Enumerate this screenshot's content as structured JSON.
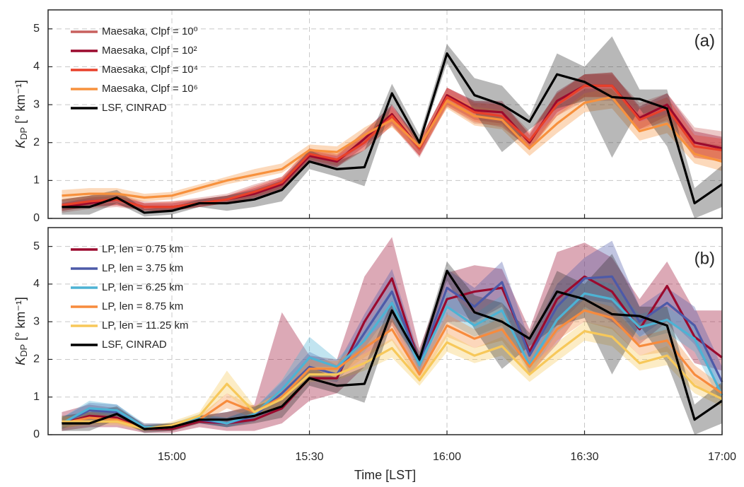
{
  "chart_data": [
    {
      "type": "line",
      "panel_label": "(a)",
      "legend": "upper left",
      "grid": true,
      "ylabel": {
        "text": "K",
        "sub": "DP",
        "unit": " [° km⁻¹]"
      },
      "ylim": [
        0,
        5.5
      ],
      "yticks": [
        0,
        1,
        2,
        3,
        4,
        5
      ],
      "xlim": [
        "14:33",
        "17:00"
      ],
      "x": [
        "14:36",
        "14:42",
        "14:48",
        "14:54",
        "15:00",
        "15:06",
        "15:12",
        "15:18",
        "15:24",
        "15:30",
        "15:36",
        "15:42",
        "15:48",
        "15:54",
        "16:00",
        "16:06",
        "16:12",
        "16:18",
        "16:24",
        "16:30",
        "16:36",
        "16:42",
        "16:48",
        "16:54",
        "17:00"
      ],
      "series": [
        {
          "name": "Maesaka, Clpf = 10⁰",
          "color": "#c8605e",
          "values": [
            0.3,
            0.4,
            0.45,
            0.3,
            0.3,
            0.4,
            0.5,
            0.7,
            0.9,
            1.65,
            1.5,
            2.0,
            2.7,
            1.8,
            3.2,
            2.8,
            2.75,
            2.05,
            3.0,
            3.45,
            3.45,
            2.7,
            2.9,
            2.0,
            1.9
          ],
          "lower": [
            0.15,
            0.25,
            0.3,
            0.2,
            0.2,
            0.3,
            0.4,
            0.55,
            0.75,
            1.5,
            1.35,
            1.8,
            2.45,
            1.6,
            2.95,
            2.5,
            2.45,
            1.8,
            2.7,
            3.1,
            3.1,
            2.35,
            2.55,
            1.6,
            1.5
          ],
          "upper": [
            0.5,
            0.6,
            0.65,
            0.45,
            0.45,
            0.55,
            0.65,
            0.9,
            1.1,
            1.85,
            1.7,
            2.3,
            3.0,
            2.05,
            3.45,
            3.1,
            3.05,
            2.3,
            3.3,
            3.8,
            3.8,
            3.05,
            3.3,
            2.4,
            2.3
          ]
        },
        {
          "name": "Maesaka, Clpf = 10²",
          "color": "#9b0a2e",
          "values": [
            0.3,
            0.4,
            0.5,
            0.3,
            0.3,
            0.4,
            0.5,
            0.65,
            0.9,
            1.65,
            1.5,
            2.1,
            2.75,
            1.85,
            3.25,
            2.85,
            2.8,
            2.0,
            3.1,
            3.5,
            3.5,
            2.65,
            3.0,
            2.0,
            1.85
          ],
          "lower": [
            0.2,
            0.3,
            0.35,
            0.2,
            0.2,
            0.3,
            0.4,
            0.5,
            0.75,
            1.5,
            1.35,
            1.9,
            2.5,
            1.65,
            3.0,
            2.6,
            2.5,
            1.8,
            2.8,
            3.2,
            3.2,
            2.35,
            2.7,
            1.7,
            1.55
          ],
          "upper": [
            0.4,
            0.55,
            0.6,
            0.4,
            0.4,
            0.5,
            0.6,
            0.8,
            1.05,
            1.8,
            1.65,
            2.3,
            3.0,
            2.05,
            3.45,
            3.1,
            3.1,
            2.2,
            3.35,
            3.8,
            3.85,
            2.95,
            3.3,
            2.3,
            2.15
          ]
        },
        {
          "name": "Maesaka, Clpf = 10⁴",
          "color": "#e8402a",
          "values": [
            0.35,
            0.45,
            0.5,
            0.3,
            0.3,
            0.4,
            0.5,
            0.7,
            0.95,
            1.7,
            1.55,
            2.0,
            2.7,
            1.85,
            3.2,
            2.8,
            2.7,
            2.05,
            3.0,
            3.5,
            3.5,
            2.6,
            2.9,
            1.9,
            1.8
          ],
          "lower": [
            0.2,
            0.3,
            0.35,
            0.2,
            0.2,
            0.3,
            0.4,
            0.55,
            0.8,
            1.55,
            1.4,
            1.8,
            2.45,
            1.65,
            2.95,
            2.55,
            2.4,
            1.85,
            2.7,
            3.2,
            3.2,
            2.3,
            2.6,
            1.6,
            1.5
          ],
          "upper": [
            0.5,
            0.6,
            0.65,
            0.4,
            0.45,
            0.5,
            0.6,
            0.85,
            1.1,
            1.85,
            1.7,
            2.2,
            2.95,
            2.05,
            3.45,
            3.05,
            3.0,
            2.25,
            3.3,
            3.8,
            3.85,
            2.9,
            3.2,
            2.2,
            2.1
          ]
        },
        {
          "name": "Maesaka, Clpf = 10⁶",
          "color": "#f7913d",
          "values": [
            0.6,
            0.65,
            0.65,
            0.55,
            0.6,
            0.8,
            1.0,
            1.15,
            1.3,
            1.8,
            1.75,
            2.2,
            2.6,
            1.9,
            3.1,
            2.7,
            2.6,
            1.85,
            2.5,
            3.05,
            3.2,
            2.3,
            2.5,
            1.7,
            1.5
          ],
          "lower": [
            0.45,
            0.5,
            0.5,
            0.45,
            0.5,
            0.7,
            0.9,
            1.05,
            1.2,
            1.7,
            1.65,
            2.05,
            2.4,
            1.75,
            2.9,
            2.45,
            2.35,
            1.65,
            2.25,
            2.8,
            2.9,
            2.05,
            2.25,
            1.45,
            1.25
          ],
          "upper": [
            0.75,
            0.8,
            0.8,
            0.65,
            0.7,
            0.9,
            1.1,
            1.3,
            1.45,
            1.95,
            1.9,
            2.4,
            2.8,
            2.05,
            3.3,
            2.95,
            2.85,
            2.05,
            2.75,
            3.3,
            3.45,
            2.55,
            2.75,
            1.95,
            1.75
          ]
        },
        {
          "name": "LSF, CINRAD",
          "color": "#000000",
          "band_color": "#333333",
          "values": [
            0.3,
            0.3,
            0.55,
            0.15,
            0.2,
            0.4,
            0.4,
            0.5,
            0.75,
            1.5,
            1.3,
            1.35,
            3.3,
            2.0,
            4.35,
            3.25,
            3.0,
            2.55,
            3.8,
            3.6,
            3.2,
            3.15,
            2.9,
            0.4,
            0.9
          ],
          "lower": [
            0.1,
            0.1,
            0.4,
            0.05,
            0.1,
            0.3,
            0.2,
            0.3,
            0.45,
            1.3,
            1.1,
            0.85,
            3.0,
            1.9,
            4.1,
            2.8,
            1.75,
            2.35,
            2.9,
            3.1,
            1.6,
            2.9,
            1.9,
            0.0,
            0.3
          ],
          "upper": [
            0.5,
            0.6,
            0.75,
            0.25,
            0.3,
            0.5,
            0.6,
            0.75,
            1.0,
            1.8,
            1.5,
            1.8,
            3.55,
            2.2,
            4.6,
            3.7,
            3.5,
            2.7,
            4.35,
            4.0,
            4.8,
            3.4,
            3.4,
            0.8,
            1.4
          ]
        }
      ]
    },
    {
      "type": "line",
      "panel_label": "(b)",
      "legend": "upper left",
      "grid": true,
      "ylabel": {
        "text": "K",
        "sub": "DP",
        "unit": " [° km⁻¹]"
      },
      "xlabel": "Time [LST]",
      "ylim": [
        0,
        5.5
      ],
      "yticks": [
        0,
        1,
        2,
        3,
        4,
        5
      ],
      "xlim": [
        "14:33",
        "17:00"
      ],
      "xticks": [
        "15:00",
        "15:30",
        "16:00",
        "16:30",
        "17:00"
      ],
      "x": [
        "14:36",
        "14:42",
        "14:48",
        "14:54",
        "15:00",
        "15:06",
        "15:12",
        "15:18",
        "15:24",
        "15:30",
        "15:36",
        "15:42",
        "15:48",
        "15:54",
        "16:00",
        "16:06",
        "16:12",
        "16:18",
        "16:24",
        "16:30",
        "16:36",
        "16:42",
        "16:48",
        "16:54",
        "17:00"
      ],
      "series": [
        {
          "name": "LP, len = 0.75 km",
          "color": "#9b0a2e",
          "values": [
            0.3,
            0.5,
            0.45,
            0.15,
            0.15,
            0.35,
            0.3,
            0.4,
            0.7,
            1.5,
            1.5,
            3.0,
            4.15,
            1.9,
            3.6,
            3.8,
            3.9,
            2.2,
            3.6,
            4.2,
            3.8,
            2.8,
            3.95,
            2.6,
            2.05
          ],
          "lower": [
            0.1,
            0.2,
            0.2,
            0.05,
            0.05,
            0.2,
            0.1,
            0.1,
            0.3,
            0.9,
            1.1,
            1.8,
            2.9,
            1.6,
            3.0,
            3.0,
            3.4,
            1.6,
            2.4,
            3.4,
            3.0,
            2.4,
            3.0,
            1.9,
            1.7
          ],
          "upper": [
            0.6,
            0.8,
            0.7,
            0.3,
            0.3,
            0.5,
            0.6,
            0.8,
            3.25,
            2.1,
            2.0,
            4.2,
            5.25,
            2.3,
            4.3,
            4.5,
            4.4,
            2.8,
            4.85,
            5.1,
            4.7,
            3.6,
            4.6,
            3.3,
            3.3
          ]
        },
        {
          "name": "LP, len = 3.75 km",
          "color": "#4d5aa8",
          "values": [
            0.3,
            0.65,
            0.6,
            0.15,
            0.2,
            0.4,
            0.3,
            0.5,
            1.1,
            1.8,
            1.6,
            2.7,
            3.8,
            1.9,
            3.9,
            3.4,
            4.05,
            2.1,
            3.4,
            4.15,
            4.2,
            3.0,
            3.5,
            2.9,
            1.4
          ],
          "lower": [
            0.15,
            0.45,
            0.45,
            0.1,
            0.1,
            0.3,
            0.2,
            0.35,
            0.8,
            1.5,
            1.4,
            2.3,
            3.3,
            1.7,
            3.4,
            3.0,
            3.5,
            1.8,
            2.9,
            3.6,
            3.5,
            2.6,
            3.1,
            2.4,
            1.1
          ],
          "upper": [
            0.45,
            0.85,
            0.8,
            0.25,
            0.3,
            0.5,
            0.45,
            0.7,
            1.4,
            2.2,
            1.85,
            3.2,
            4.4,
            2.1,
            4.4,
            3.9,
            4.6,
            2.5,
            4.0,
            4.7,
            5.15,
            3.4,
            3.9,
            3.4,
            1.8
          ]
        },
        {
          "name": "LP, len = 6.25 km",
          "color": "#4db3d4",
          "values": [
            0.3,
            0.7,
            0.65,
            0.2,
            0.2,
            0.45,
            0.3,
            0.55,
            1.2,
            2.05,
            1.8,
            2.5,
            3.5,
            1.85,
            3.4,
            2.9,
            3.3,
            1.85,
            3.05,
            3.75,
            3.6,
            2.85,
            3.05,
            2.55,
            1.05
          ],
          "lower": [
            0.15,
            0.5,
            0.5,
            0.1,
            0.1,
            0.35,
            0.2,
            0.4,
            0.95,
            1.75,
            1.6,
            2.2,
            3.1,
            1.65,
            3.0,
            2.6,
            2.9,
            1.6,
            2.7,
            3.3,
            3.2,
            2.5,
            2.7,
            2.2,
            0.8
          ],
          "upper": [
            0.45,
            0.9,
            0.8,
            0.3,
            0.3,
            0.55,
            0.45,
            0.7,
            1.45,
            2.6,
            2.0,
            2.8,
            3.9,
            2.05,
            3.8,
            3.2,
            3.7,
            2.1,
            3.4,
            4.2,
            4.0,
            3.2,
            3.4,
            2.9,
            1.3
          ]
        },
        {
          "name": "LP, len = 8.75 km",
          "color": "#f78b3d",
          "values": [
            0.3,
            0.45,
            0.4,
            0.15,
            0.2,
            0.4,
            0.9,
            0.6,
            1.0,
            1.75,
            1.75,
            2.3,
            2.8,
            1.6,
            2.9,
            2.55,
            2.8,
            1.8,
            2.8,
            3.3,
            3.1,
            2.35,
            2.5,
            1.6,
            1.1
          ],
          "lower": [
            0.15,
            0.3,
            0.3,
            0.1,
            0.1,
            0.3,
            0.7,
            0.45,
            0.8,
            1.5,
            1.55,
            2.05,
            2.5,
            1.4,
            2.6,
            2.3,
            2.5,
            1.55,
            2.5,
            3.0,
            2.8,
            2.1,
            2.2,
            1.35,
            0.9
          ],
          "upper": [
            0.45,
            0.6,
            0.5,
            0.2,
            0.3,
            0.5,
            1.1,
            0.75,
            1.2,
            2.0,
            1.95,
            2.55,
            3.1,
            1.8,
            3.2,
            2.8,
            3.1,
            2.05,
            3.1,
            3.6,
            3.4,
            2.6,
            2.8,
            1.85,
            1.3
          ]
        },
        {
          "name": "LP, len = 11.25 km",
          "color": "#f7c85a",
          "values": [
            0.35,
            0.35,
            0.35,
            0.15,
            0.25,
            0.5,
            1.35,
            0.6,
            0.95,
            1.6,
            1.6,
            1.9,
            2.3,
            1.45,
            2.45,
            2.1,
            2.35,
            1.6,
            2.2,
            2.75,
            2.6,
            1.9,
            2.1,
            1.3,
            0.95
          ],
          "lower": [
            0.2,
            0.25,
            0.25,
            0.1,
            0.15,
            0.4,
            1.1,
            0.45,
            0.8,
            1.4,
            1.45,
            1.7,
            2.05,
            1.3,
            2.2,
            1.9,
            2.1,
            1.4,
            1.95,
            2.5,
            2.35,
            1.7,
            1.85,
            1.1,
            0.75
          ],
          "upper": [
            0.5,
            0.45,
            0.45,
            0.2,
            0.35,
            0.6,
            1.7,
            0.75,
            1.15,
            1.8,
            1.8,
            2.15,
            2.55,
            1.6,
            2.7,
            2.3,
            2.6,
            1.8,
            2.45,
            3.0,
            2.85,
            2.1,
            2.35,
            1.5,
            1.15
          ]
        },
        {
          "name": "LSF, CINRAD",
          "color": "#000000",
          "band_color": "#333333",
          "values": [
            0.3,
            0.3,
            0.55,
            0.15,
            0.2,
            0.4,
            0.4,
            0.5,
            0.75,
            1.5,
            1.3,
            1.35,
            3.3,
            2.0,
            4.35,
            3.25,
            3.0,
            2.55,
            3.8,
            3.6,
            3.2,
            3.15,
            2.9,
            0.4,
            0.9
          ],
          "lower": [
            0.1,
            0.1,
            0.4,
            0.05,
            0.1,
            0.3,
            0.2,
            0.3,
            0.45,
            1.3,
            1.1,
            0.85,
            3.0,
            1.9,
            4.1,
            2.8,
            1.75,
            2.35,
            2.9,
            3.1,
            1.6,
            2.9,
            1.9,
            0.0,
            0.3
          ],
          "upper": [
            0.5,
            0.6,
            0.75,
            0.25,
            0.3,
            0.5,
            0.6,
            0.75,
            1.0,
            1.8,
            1.5,
            1.8,
            3.55,
            2.2,
            4.6,
            3.7,
            3.5,
            2.7,
            4.35,
            4.0,
            4.8,
            3.4,
            3.4,
            0.8,
            1.4
          ]
        }
      ]
    }
  ]
}
